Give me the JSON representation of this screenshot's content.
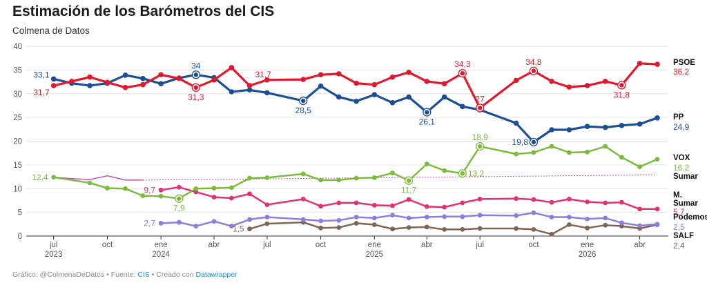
{
  "title": "Estimación de los Barómetros del CIS",
  "subtitle": "Colmena de Datos",
  "footer": {
    "prefix": "Gráfico: @ColmenaDeDatos • Fuente: ",
    "source": "CIS",
    "middle": " • Creado con ",
    "tool": "Datawrapper"
  },
  "colors": {
    "PSOE": "#e0182d",
    "PP": "#1b4f93",
    "VOX": "#7cba3b",
    "Sumar": "#c64ab7",
    "M. Sumar": "#e0336e",
    "Podemos": "#8f7cdb",
    "SALF": "#7d6656"
  },
  "chart_data": {
    "type": "line",
    "title": "Estimación de los Barómetros del CIS",
    "subtitle": "Colmena de Datos",
    "ylim": [
      0,
      40
    ],
    "y_ticks": [
      0,
      5,
      10,
      15,
      20,
      25,
      30,
      35,
      40
    ],
    "grid": true,
    "x_ticks": [
      {
        "x": "2023-07-01",
        "label": "jul",
        "year": "2023"
      },
      {
        "x": "2023-10-01",
        "label": "oct",
        "year": ""
      },
      {
        "x": "2024-01-01",
        "label": "ene",
        "year": "2024"
      },
      {
        "x": "2024-04-01",
        "label": "abr",
        "year": ""
      },
      {
        "x": "2024-07-01",
        "label": "jul",
        "year": ""
      },
      {
        "x": "2024-10-01",
        "label": "oct",
        "year": ""
      },
      {
        "x": "2025-01-01",
        "label": "ene",
        "year": "2025"
      },
      {
        "x": "2025-04-01",
        "label": "abr",
        "year": ""
      },
      {
        "x": "2025-07-01",
        "label": "jul",
        "year": ""
      },
      {
        "x": "2025-10-01",
        "label": "oct",
        "year": ""
      },
      {
        "x": "2026-01-01",
        "label": "ene",
        "year": "2026"
      },
      {
        "x": "2026-04-01",
        "label": "abr",
        "year": ""
      }
    ],
    "series": [
      {
        "name": "PSOE",
        "points": [
          [
            "2023-07-01",
            31.7
          ],
          [
            "2023-08-01",
            32.6
          ],
          [
            "2023-09-01",
            33.5
          ],
          [
            "2023-10-01",
            32.4
          ],
          [
            "2023-11-01",
            31.3
          ],
          [
            "2023-12-01",
            31.9
          ],
          [
            "2024-01-01",
            34.0
          ],
          [
            "2024-02-01",
            33.2
          ],
          [
            "2024-03-01",
            31.3
          ],
          [
            "2024-04-01",
            32.9
          ],
          [
            "2024-05-01",
            35.5
          ],
          [
            "2024-06-01",
            31.7
          ],
          [
            "2024-07-01",
            32.9
          ],
          [
            "2024-09-01",
            33.0
          ],
          [
            "2024-10-01",
            34.0
          ],
          [
            "2024-11-01",
            34.2
          ],
          [
            "2024-12-01",
            32.2
          ],
          [
            "2025-01-01",
            31.9
          ],
          [
            "2025-02-01",
            33.5
          ],
          [
            "2025-03-01",
            34.5
          ],
          [
            "2025-04-01",
            32.6
          ],
          [
            "2025-05-01",
            32.1
          ],
          [
            "2025-06-01",
            34.3
          ],
          [
            "2025-07-01",
            27.0
          ],
          [
            "2025-09-01",
            32.8
          ],
          [
            "2025-10-01",
            34.8
          ],
          [
            "2025-11-01",
            32.6
          ],
          [
            "2025-12-01",
            31.4
          ],
          [
            "2026-01-01",
            31.7
          ],
          [
            "2026-02-01",
            32.6
          ],
          [
            "2026-03-01",
            31.8
          ],
          [
            "2026-04-01",
            36.4
          ],
          [
            "2026-05-01",
            36.2
          ]
        ]
      },
      {
        "name": "PP",
        "points": [
          [
            "2023-07-01",
            33.1
          ],
          [
            "2023-08-01",
            32.2
          ],
          [
            "2023-09-01",
            31.7
          ],
          [
            "2023-10-01",
            32.2
          ],
          [
            "2023-11-01",
            33.9
          ],
          [
            "2023-12-01",
            33.2
          ],
          [
            "2024-01-01",
            32.1
          ],
          [
            "2024-02-01",
            33.3
          ],
          [
            "2024-03-01",
            34.0
          ],
          [
            "2024-04-01",
            33.4
          ],
          [
            "2024-05-01",
            30.4
          ],
          [
            "2024-06-01",
            30.8
          ],
          [
            "2024-07-01",
            30.2
          ],
          [
            "2024-09-01",
            28.5
          ],
          [
            "2024-10-01",
            31.6
          ],
          [
            "2024-11-01",
            29.3
          ],
          [
            "2024-12-01",
            28.4
          ],
          [
            "2025-01-01",
            29.8
          ],
          [
            "2025-02-01",
            28.1
          ],
          [
            "2025-03-01",
            29.3
          ],
          [
            "2025-04-01",
            26.1
          ],
          [
            "2025-05-01",
            29.3
          ],
          [
            "2025-06-01",
            27.3
          ],
          [
            "2025-07-01",
            26.6
          ],
          [
            "2025-09-01",
            23.8
          ],
          [
            "2025-10-01",
            19.8
          ],
          [
            "2025-11-01",
            22.4
          ],
          [
            "2025-12-01",
            22.4
          ],
          [
            "2026-01-01",
            23.1
          ],
          [
            "2026-02-01",
            22.9
          ],
          [
            "2026-03-01",
            23.3
          ],
          [
            "2026-04-01",
            23.6
          ],
          [
            "2026-05-01",
            24.9
          ]
        ]
      },
      {
        "name": "VOX",
        "points": [
          [
            "2023-07-01",
            12.4
          ],
          [
            "2023-09-01",
            11.2
          ],
          [
            "2023-10-01",
            10.1
          ],
          [
            "2023-11-01",
            10.0
          ],
          [
            "2023-12-01",
            8.5
          ],
          [
            "2024-01-01",
            8.4
          ],
          [
            "2024-02-01",
            7.9
          ],
          [
            "2024-03-01",
            10.0
          ],
          [
            "2024-04-01",
            10.1
          ],
          [
            "2024-05-01",
            10.2
          ],
          [
            "2024-06-01",
            12.2
          ],
          [
            "2024-07-01",
            12.3
          ],
          [
            "2024-09-01",
            13.1
          ],
          [
            "2024-10-01",
            11.8
          ],
          [
            "2024-11-01",
            11.8
          ],
          [
            "2024-12-01",
            12.2
          ],
          [
            "2025-01-01",
            12.3
          ],
          [
            "2025-02-01",
            13.3
          ],
          [
            "2025-03-01",
            11.7
          ],
          [
            "2025-04-01",
            15.2
          ],
          [
            "2025-05-01",
            13.8
          ],
          [
            "2025-06-01",
            13.2
          ],
          [
            "2025-07-01",
            18.9
          ],
          [
            "2025-09-01",
            17.3
          ],
          [
            "2025-10-01",
            17.6
          ],
          [
            "2025-11-01",
            18.9
          ],
          [
            "2025-12-01",
            17.6
          ],
          [
            "2026-01-01",
            17.7
          ],
          [
            "2026-02-01",
            18.9
          ],
          [
            "2026-03-01",
            16.6
          ],
          [
            "2026-04-01",
            14.6
          ],
          [
            "2026-05-01",
            16.2
          ]
        ]
      },
      {
        "name": "Sumar",
        "points": [
          [
            "2023-07-01",
            12.4
          ],
          [
            "2023-08-01",
            12.1
          ],
          [
            "2023-09-01",
            11.9
          ],
          [
            "2023-10-01",
            12.7
          ],
          [
            "2023-11-01",
            11.8
          ],
          [
            "2023-12-01",
            11.8
          ]
        ]
      },
      {
        "name": "M. Sumar",
        "points": [
          [
            "2024-01-01",
            9.7
          ],
          [
            "2024-02-01",
            10.3
          ],
          [
            "2024-03-01",
            9.3
          ],
          [
            "2024-04-01",
            8.2
          ],
          [
            "2024-05-01",
            8.0
          ],
          [
            "2024-06-01",
            8.9
          ],
          [
            "2024-07-01",
            6.6
          ],
          [
            "2024-09-01",
            7.8
          ],
          [
            "2024-10-01",
            6.3
          ],
          [
            "2024-11-01",
            7.0
          ],
          [
            "2024-12-01",
            7.0
          ],
          [
            "2025-01-01",
            6.5
          ],
          [
            "2025-02-01",
            6.4
          ],
          [
            "2025-03-01",
            7.7
          ],
          [
            "2025-04-01",
            6.2
          ],
          [
            "2025-05-01",
            6.1
          ],
          [
            "2025-06-01",
            7.0
          ],
          [
            "2025-07-01",
            7.8
          ],
          [
            "2025-09-01",
            7.9
          ],
          [
            "2025-10-01",
            7.7
          ],
          [
            "2025-11-01",
            7.1
          ],
          [
            "2025-12-01",
            7.8
          ],
          [
            "2026-01-01",
            7.2
          ],
          [
            "2026-02-01",
            7.0
          ],
          [
            "2026-03-01",
            7.1
          ],
          [
            "2026-04-01",
            5.7
          ],
          [
            "2026-05-01",
            5.7
          ]
        ]
      },
      {
        "name": "Podemos",
        "points": [
          [
            "2024-01-01",
            2.7
          ],
          [
            "2024-02-01",
            2.9
          ],
          [
            "2024-03-01",
            2.1
          ],
          [
            "2024-04-01",
            3.1
          ],
          [
            "2024-05-01",
            2.1
          ],
          [
            "2024-06-01",
            3.5
          ],
          [
            "2024-07-01",
            4.0
          ],
          [
            "2024-09-01",
            3.5
          ],
          [
            "2024-10-01",
            3.2
          ],
          [
            "2024-11-01",
            3.3
          ],
          [
            "2024-12-01",
            4.0
          ],
          [
            "2025-01-01",
            3.8
          ],
          [
            "2025-02-01",
            4.4
          ],
          [
            "2025-03-01",
            3.8
          ],
          [
            "2025-04-01",
            4.0
          ],
          [
            "2025-05-01",
            4.1
          ],
          [
            "2025-06-01",
            4.1
          ],
          [
            "2025-07-01",
            4.4
          ],
          [
            "2025-09-01",
            4.3
          ],
          [
            "2025-10-01",
            4.9
          ],
          [
            "2025-11-01",
            4.0
          ],
          [
            "2025-12-01",
            4.0
          ],
          [
            "2026-01-01",
            3.6
          ],
          [
            "2026-02-01",
            3.8
          ],
          [
            "2026-03-01",
            2.8
          ],
          [
            "2026-04-01",
            2.2
          ],
          [
            "2026-05-01",
            2.5
          ]
        ]
      },
      {
        "name": "SALF",
        "points": [
          [
            "2024-06-01",
            1.5
          ],
          [
            "2024-07-01",
            2.6
          ],
          [
            "2024-09-01",
            2.9
          ],
          [
            "2024-10-01",
            1.7
          ],
          [
            "2024-11-01",
            1.8
          ],
          [
            "2024-12-01",
            2.7
          ],
          [
            "2025-01-01",
            2.4
          ],
          [
            "2025-02-01",
            1.5
          ],
          [
            "2025-03-01",
            1.8
          ],
          [
            "2025-04-01",
            1.9
          ],
          [
            "2025-05-01",
            1.4
          ],
          [
            "2025-06-01",
            1.4
          ],
          [
            "2025-07-01",
            1.6
          ],
          [
            "2025-09-01",
            1.6
          ],
          [
            "2025-10-01",
            1.4
          ],
          [
            "2025-11-01",
            0.4
          ],
          [
            "2025-12-01",
            2.4
          ],
          [
            "2026-01-01",
            1.7
          ],
          [
            "2026-02-01",
            2.3
          ],
          [
            "2026-03-01",
            2.1
          ],
          [
            "2026-04-01",
            1.6
          ],
          [
            "2026-05-01",
            2.4
          ]
        ]
      }
    ],
    "sumar_reference_line": {
      "name": "Sumar",
      "from": [
        "2023-12-01",
        11.8
      ],
      "to": [
        "2026-05-01",
        12.9
      ]
    },
    "end_labels": [
      {
        "series": "PSOE",
        "name": "PSOE",
        "value": "36,2"
      },
      {
        "series": "PP",
        "name": "PP",
        "value": "24,9"
      },
      {
        "series": "VOX",
        "name": "VOX",
        "value": "16,2"
      },
      {
        "series": "Sumar",
        "name": "Sumar",
        "value": ""
      },
      {
        "series": "M. Sumar",
        "name": "M. Sumar",
        "value": "5,7"
      },
      {
        "series": "Podemos",
        "name": "Podemos",
        "value": "2,5"
      },
      {
        "series": "SALF",
        "name": "SALF",
        "value": "2,4"
      }
    ],
    "annotations": [
      {
        "series": "PP",
        "x": "2023-07-01",
        "y": 33.1,
        "text": "33,1",
        "pos": "above-left"
      },
      {
        "series": "PSOE",
        "x": "2023-07-01",
        "y": 31.7,
        "text": "31,7",
        "pos": "below-left"
      },
      {
        "series": "PP",
        "x": "2024-03-01",
        "y": 34.0,
        "text": "34",
        "pos": "above",
        "ring": true
      },
      {
        "series": "PSOE",
        "x": "2024-03-01",
        "y": 31.3,
        "text": "31,3",
        "pos": "below",
        "ring": true
      },
      {
        "series": "PSOE",
        "x": "2024-06-01",
        "y": 31.7,
        "text": "31,7",
        "pos": "above-right"
      },
      {
        "series": "PP",
        "x": "2024-09-01",
        "y": 28.5,
        "text": "28,5",
        "pos": "below",
        "ring": true
      },
      {
        "series": "PP",
        "x": "2025-04-01",
        "y": 26.1,
        "text": "26,1",
        "pos": "below",
        "ring": true
      },
      {
        "series": "PSOE",
        "x": "2025-06-01",
        "y": 34.3,
        "text": "34,3",
        "pos": "above",
        "ring": true
      },
      {
        "series": "PSOE",
        "x": "2025-07-01",
        "y": 27.0,
        "text": "27",
        "pos": "above",
        "ring": true
      },
      {
        "series": "PSOE",
        "x": "2025-10-01",
        "y": 34.8,
        "text": "34,8",
        "pos": "above",
        "ring": true
      },
      {
        "series": "PP",
        "x": "2025-10-01",
        "y": 19.8,
        "text": "19,8",
        "pos": "left",
        "ring": true
      },
      {
        "series": "PSOE",
        "x": "2026-03-01",
        "y": 31.8,
        "text": "31,8",
        "pos": "below",
        "ring": true
      },
      {
        "series": "VOX",
        "x": "2023-07-01",
        "y": 12.4,
        "text": "12,4",
        "pos": "left"
      },
      {
        "series": "VOX",
        "x": "2024-02-01",
        "y": 7.9,
        "text": "7,9",
        "pos": "below",
        "ring": true
      },
      {
        "series": "VOX",
        "x": "2025-03-01",
        "y": 11.7,
        "text": "11,7",
        "pos": "below",
        "ring": true
      },
      {
        "series": "VOX",
        "x": "2025-06-01",
        "y": 13.2,
        "text": "13,2",
        "pos": "right",
        "ring": true
      },
      {
        "series": "VOX",
        "x": "2025-07-01",
        "y": 18.9,
        "text": "18,9",
        "pos": "above",
        "ring": true
      },
      {
        "series": "M. Sumar",
        "x": "2024-01-01",
        "y": 9.7,
        "text": "9,7",
        "pos": "left"
      },
      {
        "series": "Podemos",
        "x": "2024-01-01",
        "y": 2.7,
        "text": "2,7",
        "pos": "left"
      },
      {
        "series": "SALF",
        "x": "2024-06-01",
        "y": 1.5,
        "text": "1,5",
        "pos": "left"
      }
    ]
  }
}
